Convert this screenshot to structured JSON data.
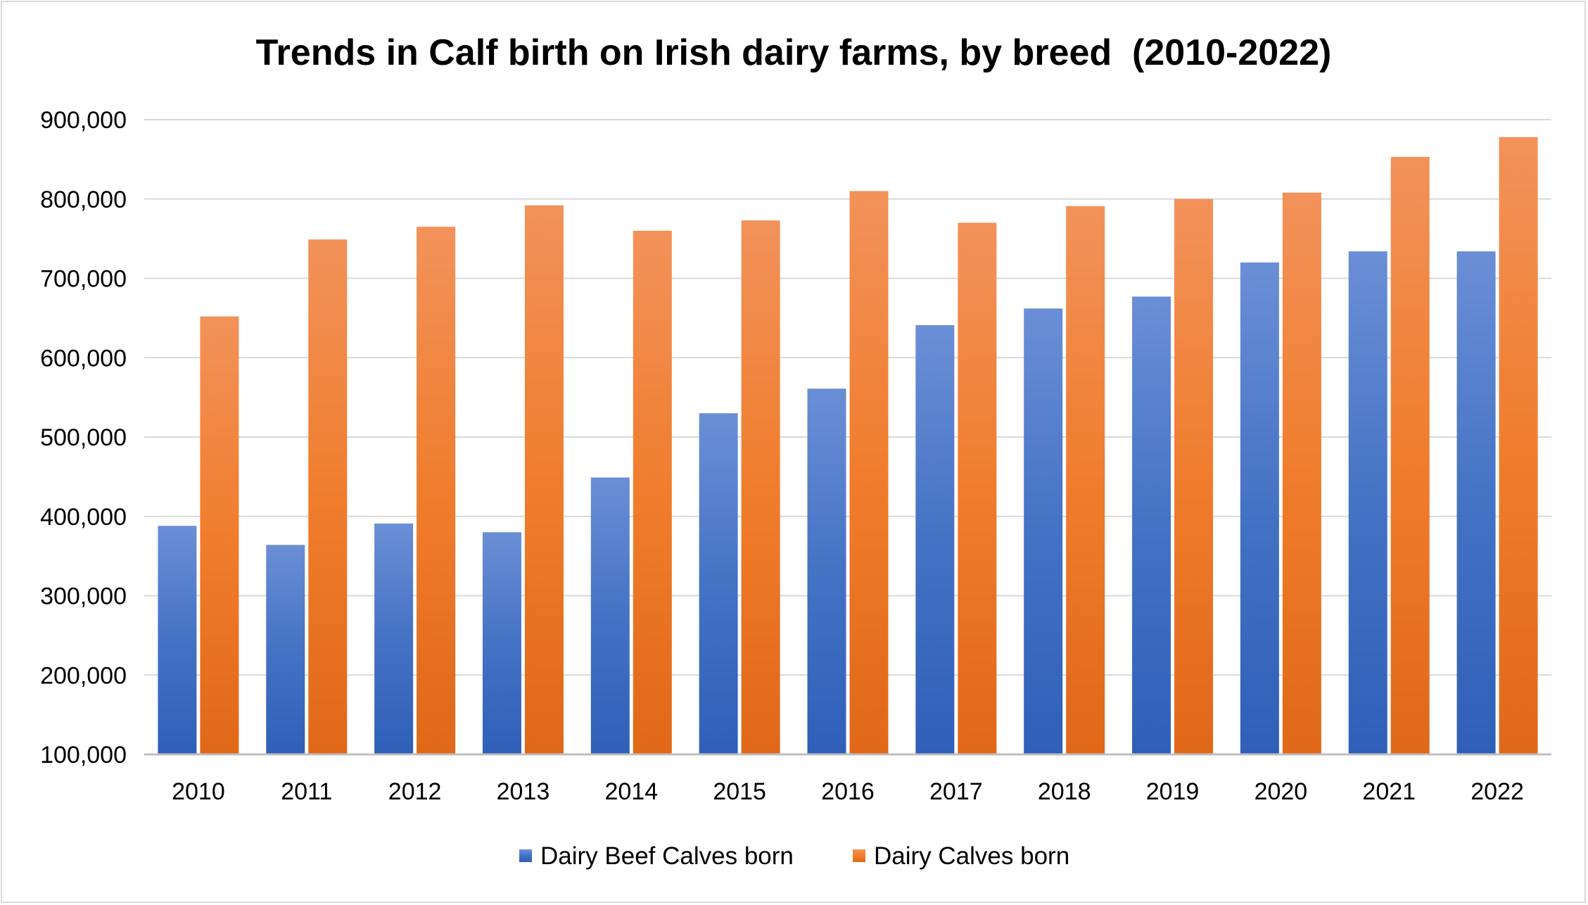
{
  "chart_data": {
    "type": "bar",
    "title": "Trends in Calf birth on Irish dairy farms, by breed  (2010-2022)",
    "xlabel": "",
    "ylabel": "",
    "categories": [
      "2010",
      "2011",
      "2012",
      "2013",
      "2014",
      "2015",
      "2016",
      "2017",
      "2018",
      "2019",
      "2020",
      "2021",
      "2022"
    ],
    "series": [
      {
        "name": "Dairy Beef Calves born",
        "color": "#4472c4",
        "values": [
          388000,
          364000,
          391000,
          380000,
          449000,
          530000,
          561000,
          641000,
          662000,
          677000,
          720000,
          734000,
          734000
        ]
      },
      {
        "name": "Dairy Calves born",
        "color": "#ed7d31",
        "values": [
          652000,
          749000,
          765000,
          792000,
          760000,
          773000,
          810000,
          770000,
          791000,
          800000,
          808000,
          853000,
          878000
        ]
      }
    ],
    "ylim": [
      100000,
      900000
    ],
    "yticks": [
      "100,000",
      "200,000",
      "300,000",
      "400,000",
      "500,000",
      "600,000",
      "700,000",
      "800,000",
      "900,000"
    ],
    "grid": true,
    "legend": "bottom"
  }
}
